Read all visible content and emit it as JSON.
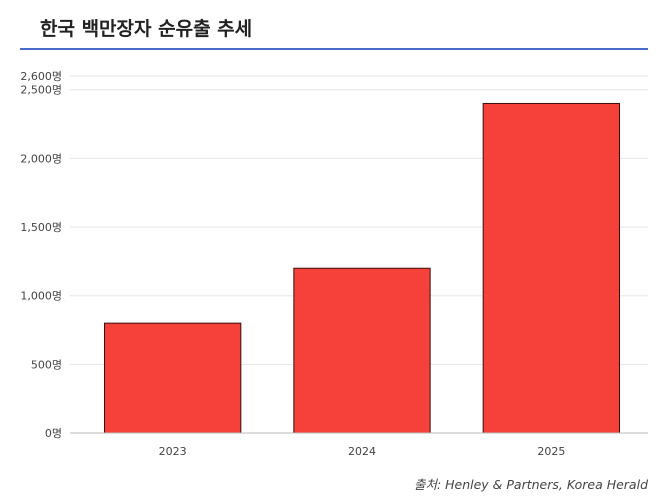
{
  "header": {
    "title": "한국 백만장자 순유출 추세"
  },
  "source": "출처: Henley & Partners, Korea Herald",
  "colors": {
    "bar": "#f5413a",
    "bar_stroke": "#3a0f0d",
    "title_rule": "#4a6bc8",
    "grid": "#e6e6e6"
  },
  "chart_data": {
    "type": "bar",
    "title": "한국 백만장자 순유출 추세",
    "xlabel": "",
    "ylabel": "",
    "categories": [
      "2023",
      "2024",
      "2025"
    ],
    "values": [
      800,
      1200,
      2400
    ],
    "ylim": [
      0,
      2600
    ],
    "yticks": [
      0,
      500,
      1000,
      1500,
      2000,
      2500,
      2600
    ],
    "ytick_labels": [
      "0명",
      "500명",
      "1,000명",
      "1,500명",
      "2,000명",
      "2,500명",
      "2,600명"
    ],
    "grid": true,
    "legend": "none"
  }
}
